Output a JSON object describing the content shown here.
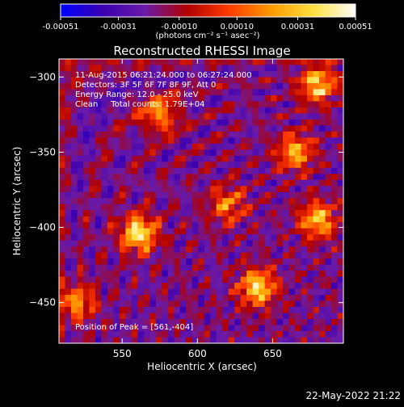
{
  "chart_data": [
    {
      "type": "heatmap",
      "title": "",
      "xlabel": "",
      "ylabel": "",
      "subtitle": "(photons cm⁻² s⁻¹ asec⁻²)",
      "colorbar_range": [
        -0.00051,
        0.00051
      ],
      "tick_values": [
        -0.00051,
        -0.00031,
        -0.0001,
        0.0001,
        0.00031,
        0.00051
      ],
      "tick_labels": [
        "-0.00051",
        "-0.00031",
        "-0.00010",
        "0.00010",
        "0.00031",
        "0.00051"
      ],
      "colormap": [
        "#0000ff",
        "#3a00b0",
        "#6a1aa8",
        "#b00000",
        "#ff3a00",
        "#ff9a00",
        "#ffe040",
        "#ffffff"
      ]
    },
    {
      "type": "heatmap",
      "title": "Reconstructed RHESSI Image",
      "xlabel": "Heliocentric X (arcsec)",
      "ylabel": "Heliocentric Y (arcsec)",
      "xlim": [
        508,
        697
      ],
      "ylim": [
        -477,
        -288
      ],
      "x_ticks": [
        550,
        600,
        650
      ],
      "y_ticks": [
        -300,
        -350,
        -400,
        -450
      ],
      "annotations": [
        "11-Aug-2015 06:21:24.000 to 06:27:24.000",
        "Detectors: 3F 5F 6F 7F 8F 9F, Att 0",
        "Energy Range: 12.0 - 25.0 keV",
        "Clean     Total counts: 1.79E+04"
      ],
      "peak_text": "Position of Peak = [561,-404]",
      "peak_position": [
        561,
        -404
      ],
      "value_range": [
        -0.00051,
        0.00051
      ],
      "bright_sources": [
        {
          "x": 561,
          "y": -404,
          "peak": 0.00051
        },
        {
          "x": 640,
          "y": -440,
          "peak": 0.00046
        },
        {
          "x": 680,
          "y": -305,
          "peak": 0.00042
        },
        {
          "x": 680,
          "y": -395,
          "peak": 0.00038
        },
        {
          "x": 665,
          "y": -350,
          "peak": 0.00033
        },
        {
          "x": 575,
          "y": -325,
          "peak": 0.00028
        },
        {
          "x": 520,
          "y": -450,
          "peak": 0.00026
        },
        {
          "x": 620,
          "y": -385,
          "peak": 0.00022
        }
      ]
    }
  ],
  "footer_date": "22-May-2022 21:22"
}
